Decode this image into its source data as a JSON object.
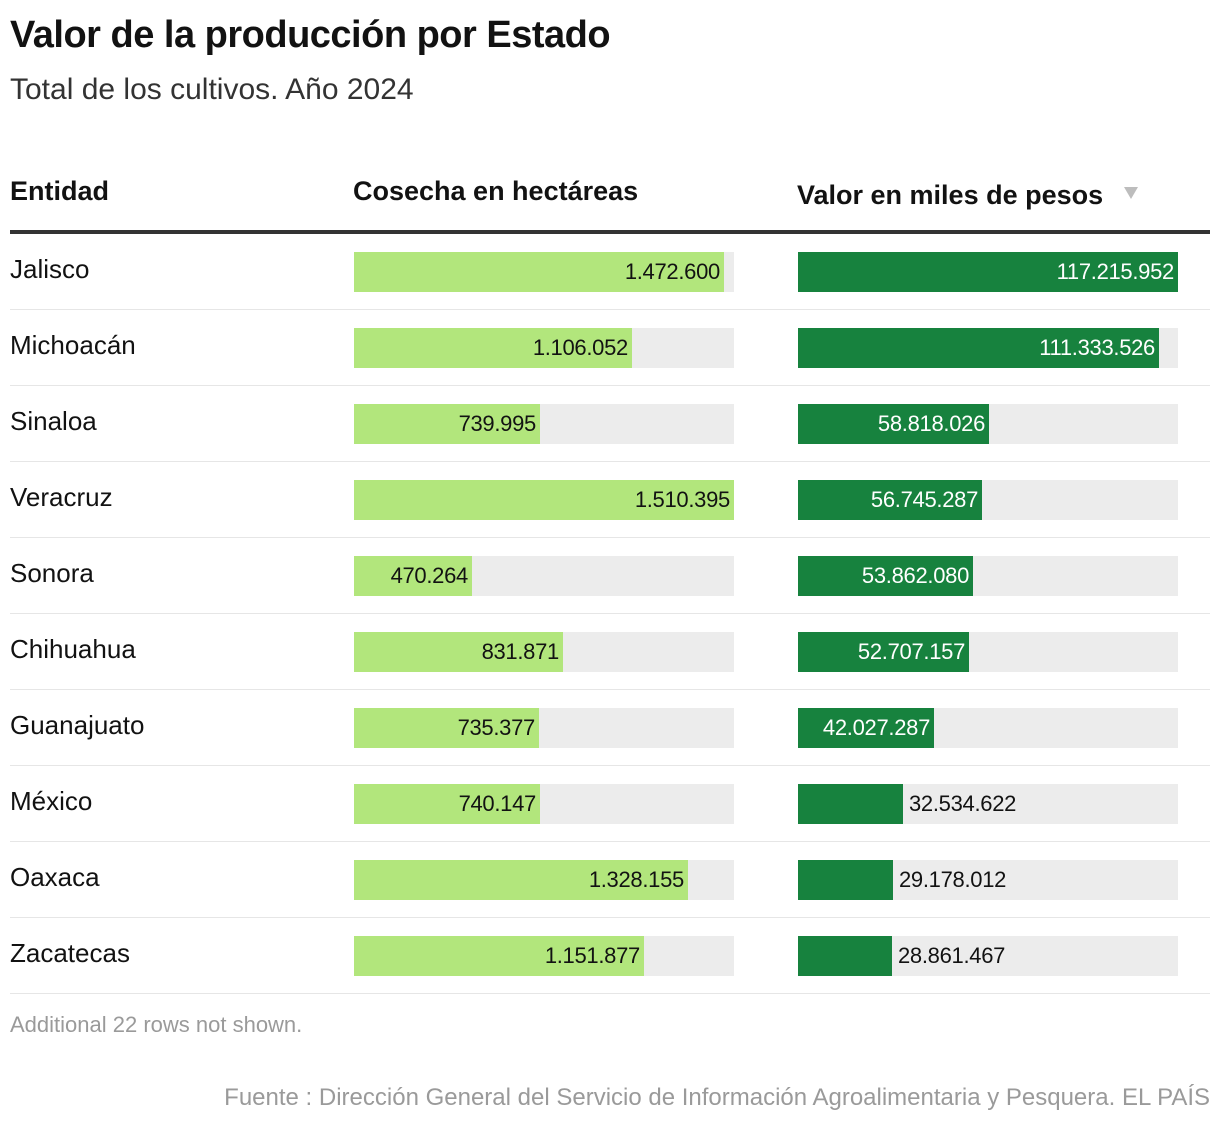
{
  "title": "Valor de la producción por Estado",
  "subtitle": "Total de los cultivos. Año 2024",
  "headers": {
    "entity": "Entidad",
    "harvest": "Cosecha en hectáreas",
    "value": "Valor en miles de pesos",
    "sort_icon": "▼"
  },
  "colors": {
    "harvest_bar": "#b2e67c",
    "value_bar": "#17823e",
    "track": "#ececec"
  },
  "chart_data": {
    "type": "table",
    "columns": [
      "Entidad",
      "Cosecha en hectáreas",
      "Valor en miles de pesos"
    ],
    "sorted_by": "Valor en miles de pesos",
    "sort_order": "descending",
    "harvest_max": 1510395,
    "value_max": 117215952,
    "rows": [
      {
        "entity": "Jalisco",
        "harvest": 1472600,
        "harvest_label": "1.472.600",
        "value": 117215952,
        "value_label": "117.215.952"
      },
      {
        "entity": "Michoacán",
        "harvest": 1106052,
        "harvest_label": "1.106.052",
        "value": 111333526,
        "value_label": "111.333.526"
      },
      {
        "entity": "Sinaloa",
        "harvest": 739995,
        "harvest_label": "739.995",
        "value": 58818026,
        "value_label": "58.818.026"
      },
      {
        "entity": "Veracruz",
        "harvest": 1510395,
        "harvest_label": "1.510.395",
        "value": 56745287,
        "value_label": "56.745.287"
      },
      {
        "entity": "Sonora",
        "harvest": 470264,
        "harvest_label": "470.264",
        "value": 53862080,
        "value_label": "53.862.080"
      },
      {
        "entity": "Chihuahua",
        "harvest": 831871,
        "harvest_label": "831.871",
        "value": 52707157,
        "value_label": "52.707.157"
      },
      {
        "entity": "Guanajuato",
        "harvest": 735377,
        "harvest_label": "735.377",
        "value": 42027287,
        "value_label": "42.027.287"
      },
      {
        "entity": "México",
        "harvest": 740147,
        "harvest_label": "740.147",
        "value": 32534622,
        "value_label": "32.534.622"
      },
      {
        "entity": "Oaxaca",
        "harvest": 1328155,
        "harvest_label": "1.328.155",
        "value": 29178012,
        "value_label": "29.178.012"
      },
      {
        "entity": "Zacatecas",
        "harvest": 1151877,
        "harvest_label": "1.151.877",
        "value": 28861467,
        "value_label": "28.861.467"
      }
    ]
  },
  "footnote": "Additional 22 rows not shown.",
  "source": "Fuente : Dirección General del Servicio de Información Agroalimentaria y Pesquera. EL PAÍS"
}
